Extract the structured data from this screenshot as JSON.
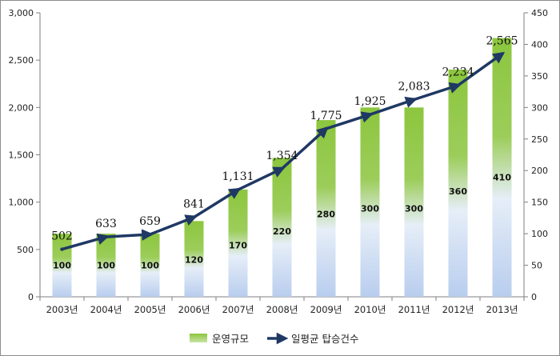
{
  "chart_data": {
    "type": "bar",
    "categories": [
      "2003년",
      "2004년",
      "2005년",
      "2006년",
      "2007년",
      "2008년",
      "2009년",
      "2010년",
      "2011년",
      "2012년",
      "2013년"
    ],
    "series": [
      {
        "name": "운영규모",
        "type": "bar",
        "axis": "right",
        "values": [
          100,
          100,
          100,
          120,
          170,
          220,
          280,
          300,
          300,
          360,
          410
        ],
        "color": "#8cc63e"
      },
      {
        "name": "일평균 탑승건수",
        "type": "line",
        "axis": "left",
        "values": [
          502,
          633,
          659,
          841,
          1131,
          1354,
          1775,
          1925,
          2083,
          2234,
          2565
        ],
        "color": "#1f3864"
      }
    ],
    "bar_labels": [
      "100",
      "100",
      "100",
      "120",
      "170",
      "220",
      "280",
      "300",
      "300",
      "360",
      "410"
    ],
    "line_labels": [
      "502",
      "633",
      "659",
      "841",
      "1,131",
      "1,354",
      "1,775",
      "1,925",
      "2,083",
      "2,234",
      "2,565"
    ],
    "y_left": {
      "ylim": [
        0,
        3000
      ],
      "ticks": [
        "0",
        "500",
        "1,000",
        "1,500",
        "2,000",
        "2,500",
        "3,000"
      ]
    },
    "y_right": {
      "ylim": [
        0,
        450
      ],
      "ticks": [
        "0",
        "50",
        "100",
        "150",
        "200",
        "250",
        "300",
        "350",
        "400",
        "450"
      ]
    },
    "legend": {
      "position": "bottom",
      "items": [
        "운영규모",
        "일평균 탑승건수"
      ]
    },
    "grid": false
  }
}
